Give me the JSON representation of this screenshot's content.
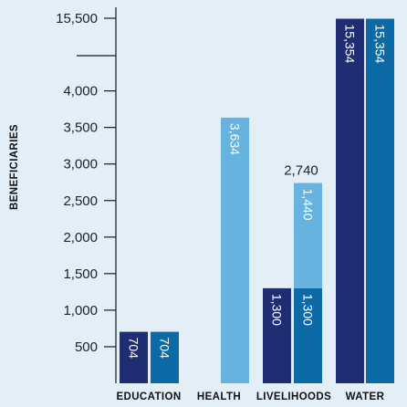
{
  "chart_data": {
    "type": "bar",
    "ylabel": "BENEFICIARIES",
    "categories": [
      "EDUCATION",
      "HEALTH",
      "LIVELIHOODS",
      "WATER"
    ],
    "y_ticks": [
      "500",
      "1,000",
      "1,500",
      "2,000",
      "2,500",
      "3,000",
      "3,500",
      "4,000",
      "15,500"
    ],
    "y_axis": "broken between 4,000 and 15,500",
    "bars": [
      {
        "category": "EDUCATION",
        "value": 704,
        "label": "704",
        "color": "#1f2e72"
      },
      {
        "category": "EDUCATION",
        "value": 704,
        "label": "704",
        "color": "#0c6aa6"
      },
      {
        "category": "HEALTH",
        "value": 3634,
        "label": "3,634",
        "color": "#66b3df"
      },
      {
        "category": "LIVELIHOODS",
        "value": 1300,
        "label": "1,300",
        "color": "#1f2e72"
      },
      {
        "category": "LIVELIHOODS",
        "value": 1300,
        "label": "1,300",
        "color": "#0c6aa6",
        "stack_on_top": {
          "value": 1440,
          "label": "1,440",
          "color": "#66b3df"
        }
      },
      {
        "category": "WATER",
        "value": 15354,
        "label": "15,354",
        "color": "#1f2e72"
      },
      {
        "category": "WATER",
        "value": 15354,
        "label": "15,354",
        "color": "#0c6aa6"
      }
    ],
    "stack_totals": [
      {
        "category": "LIVELIHOODS",
        "label": "2,740",
        "value": 2740
      }
    ],
    "grid": false,
    "legend": "none"
  }
}
